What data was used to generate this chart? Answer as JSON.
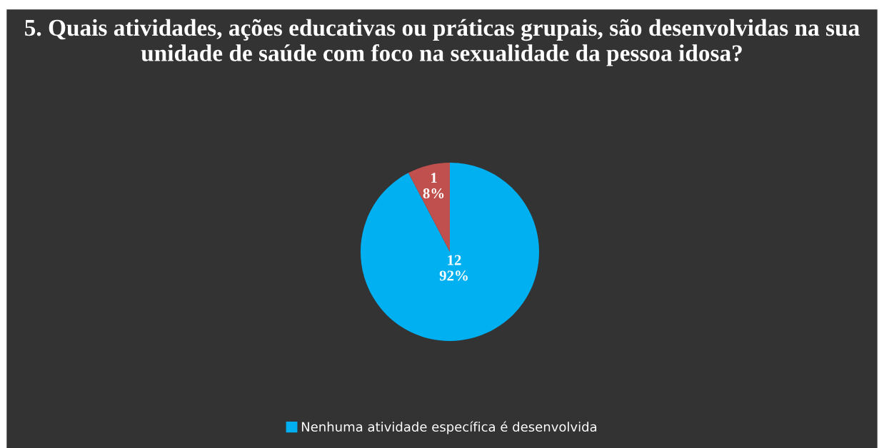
{
  "chart_data": {
    "type": "pie",
    "title": "5. Quais atividades, ações educativas ou práticas grupais, são desenvolvidas na sua unidade de saúde com foco na sexualidade da pessoa idosa?",
    "categories": [
      "Nenhuma atividade específica é desenvolvida",
      null
    ],
    "values": [
      12,
      1
    ],
    "colors": [
      "#00b0f0",
      "#c0504d"
    ],
    "value_labels": [
      "12\n92%",
      "1\n8%"
    ],
    "legend": "bottom"
  }
}
